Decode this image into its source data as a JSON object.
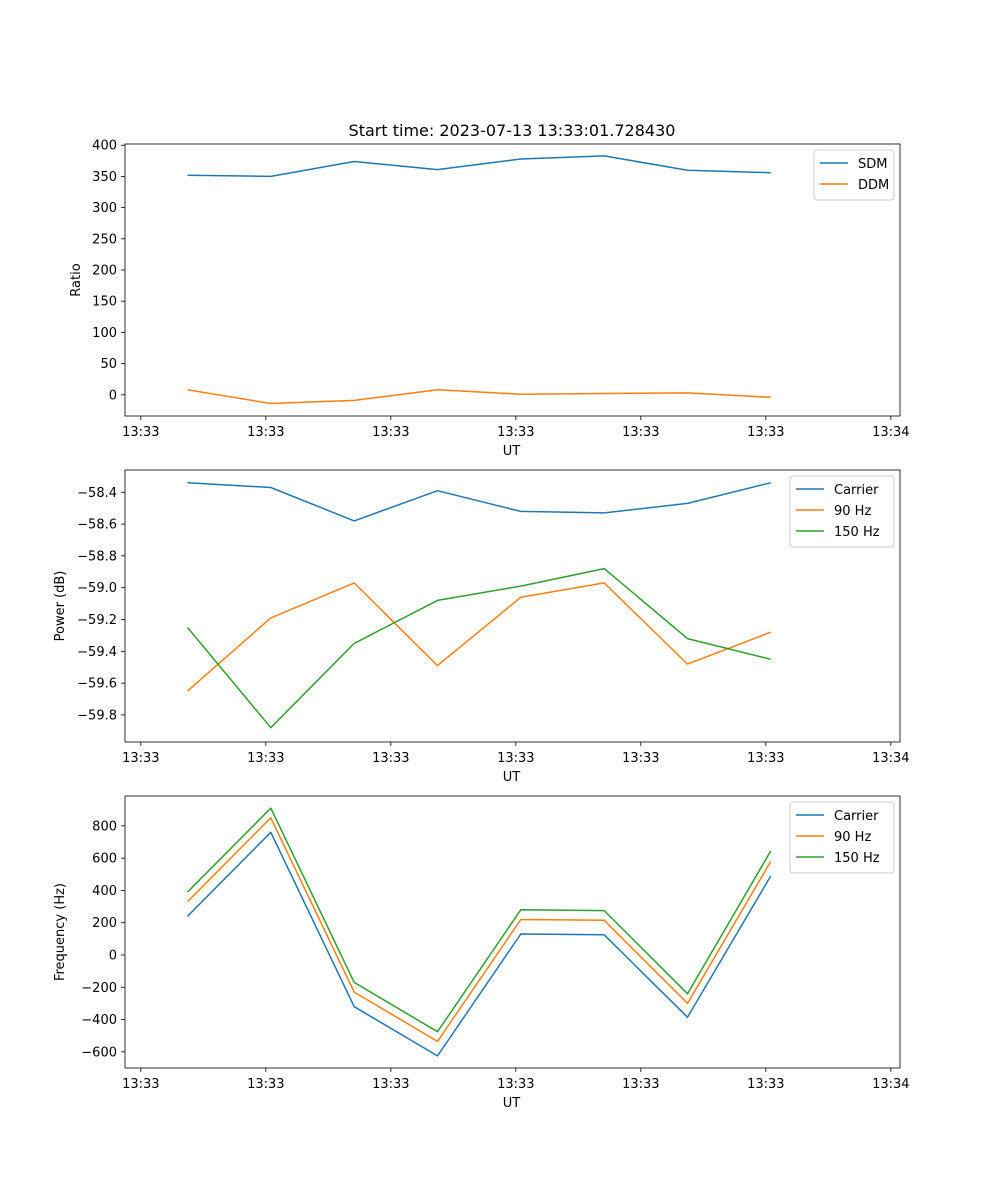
{
  "title": "Start time: 2023-07-13 13:33:01.728430",
  "colors": {
    "blue": "#1f77b4",
    "orange": "#ff7f0e",
    "green": "#2ca02c"
  },
  "chart_data": [
    {
      "type": "line",
      "title": "Start time: 2023-07-13 13:33:01.728430",
      "xlabel": "UT",
      "ylabel": "Ratio",
      "xlim": [
        -0.75,
        8.55
      ],
      "ylim": [
        -34,
        402
      ],
      "x_ticks": [
        -0.56,
        0.94,
        2.44,
        3.94,
        5.44,
        6.94,
        8.44
      ],
      "x_tick_labels": [
        "13:33",
        "13:33",
        "13:33",
        "13:33",
        "13:33",
        "13:33",
        "13:34"
      ],
      "y_ticks": [
        0,
        50,
        100,
        150,
        200,
        250,
        300,
        350,
        400
      ],
      "y_tick_labels": [
        "0",
        "50",
        "100",
        "150",
        "200",
        "250",
        "300",
        "350",
        "400"
      ],
      "legend": "top-right",
      "x": [
        0,
        1,
        2,
        3,
        4,
        5,
        6,
        7
      ],
      "series": [
        {
          "name": "SDM",
          "color": "#1f77b4",
          "values": [
            352,
            350,
            374,
            361,
            378,
            383,
            360,
            356
          ]
        },
        {
          "name": "DDM",
          "color": "#ff7f0e",
          "values": [
            8,
            -14,
            -9,
            8,
            1,
            2,
            3,
            -4
          ]
        }
      ]
    },
    {
      "type": "line",
      "xlabel": "UT",
      "ylabel": "Power (dB)",
      "xlim": [
        -0.75,
        8.55
      ],
      "ylim": [
        -59.97,
        -58.26
      ],
      "x_ticks": [
        -0.56,
        0.94,
        2.44,
        3.94,
        5.44,
        6.94,
        8.44
      ],
      "x_tick_labels": [
        "13:33",
        "13:33",
        "13:33",
        "13:33",
        "13:33",
        "13:33",
        "13:34"
      ],
      "y_ticks": [
        -59.8,
        -59.6,
        -59.4,
        -59.2,
        -59.0,
        -58.8,
        -58.6,
        -58.4
      ],
      "y_tick_labels": [
        "−59.8",
        "−59.6",
        "−59.4",
        "−59.2",
        "−59.0",
        "−58.8",
        "−58.6",
        "−58.4"
      ],
      "legend": "top-right",
      "x": [
        0,
        1,
        2,
        3,
        4,
        5,
        6,
        7
      ],
      "series": [
        {
          "name": "Carrier",
          "color": "#1f77b4",
          "values": [
            -58.34,
            -58.37,
            -58.58,
            -58.39,
            -58.52,
            -58.53,
            -58.47,
            -58.34
          ]
        },
        {
          "name": "90 Hz",
          "color": "#ff7f0e",
          "values": [
            -59.65,
            -59.19,
            -58.97,
            -59.49,
            -59.06,
            -58.97,
            -59.48,
            -59.28
          ]
        },
        {
          "name": "150 Hz",
          "color": "#2ca02c",
          "values": [
            -59.25,
            -59.88,
            -59.35,
            -59.08,
            -58.99,
            -58.88,
            -59.32,
            -59.45
          ]
        }
      ]
    },
    {
      "type": "line",
      "xlabel": "UT",
      "ylabel": "Frequency (Hz)",
      "xlim": [
        -0.75,
        8.55
      ],
      "ylim": [
        -700,
        985
      ],
      "x_ticks": [
        -0.56,
        0.94,
        2.44,
        3.94,
        5.44,
        6.94,
        8.44
      ],
      "x_tick_labels": [
        "13:33",
        "13:33",
        "13:33",
        "13:33",
        "13:33",
        "13:33",
        "13:34"
      ],
      "y_ticks": [
        -600,
        -400,
        -200,
        0,
        200,
        400,
        600,
        800
      ],
      "y_tick_labels": [
        "−600",
        "−400",
        "−200",
        "0",
        "200",
        "400",
        "600",
        "800"
      ],
      "legend": "top-right",
      "x": [
        0,
        1,
        2,
        3,
        4,
        5,
        6,
        7
      ],
      "series": [
        {
          "name": "Carrier",
          "color": "#1f77b4",
          "values": [
            240,
            760,
            -320,
            -625,
            130,
            125,
            -385,
            490
          ]
        },
        {
          "name": "90 Hz",
          "color": "#ff7f0e",
          "values": [
            330,
            850,
            -230,
            -535,
            220,
            215,
            -300,
            580
          ]
        },
        {
          "name": "150 Hz",
          "color": "#2ca02c",
          "values": [
            390,
            910,
            -170,
            -475,
            280,
            275,
            -240,
            645
          ]
        }
      ]
    }
  ]
}
